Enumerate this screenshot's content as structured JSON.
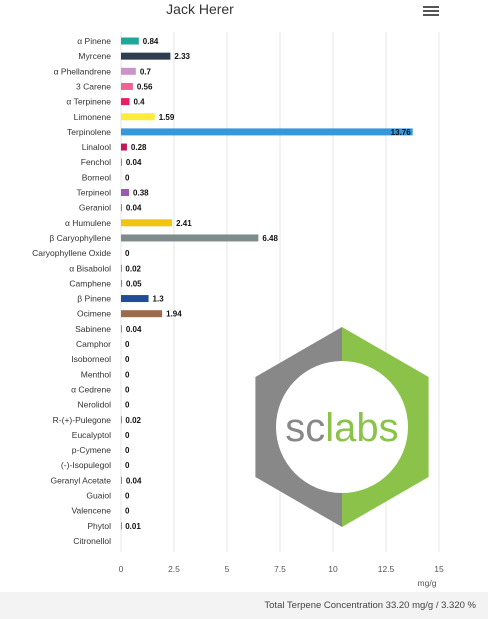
{
  "total_text": "Total Terpene Concentration 33.20 mg/g / 3.320 %",
  "logo_text": "sclabs",
  "colors": {
    "grid": "#e6e6e6",
    "logo_gray": "#888888",
    "logo_green": "#8bc34a"
  },
  "chart_data": {
    "type": "bar",
    "orientation": "horizontal",
    "title": "Jack Herer",
    "xlabel": "mg/g",
    "ylabel": "",
    "xlim": [
      0,
      15
    ],
    "xticks": [
      0,
      2.5,
      5,
      7.5,
      10,
      12.5,
      15
    ],
    "xtick_labels": [
      "0",
      "2.5",
      "5",
      "7.5",
      "10",
      "12.5",
      "15"
    ],
    "grid": true,
    "categories": [
      "α Pinene",
      "Myrcene",
      "α Phellandrene",
      "3 Carene",
      "α Terpinene",
      "Limonene",
      "Terpinolene",
      "Linalool",
      "Fenchol",
      "Borneol",
      "Terpineol",
      "Geraniol",
      "α Humulene",
      "β Caryophyllene",
      "Caryophyllene Oxide",
      "α Bisabolol",
      "Camphene",
      "β Pinene",
      "Ocimene",
      "Sabinene",
      "Camphor",
      "Isoborneol",
      "Menthol",
      "α Cedrene",
      "Nerolidol",
      "R-(+)-Pulegone",
      "Eucalyptol",
      "p-Cymene",
      "(-)-Isopulegol",
      "Geranyl Acetate",
      "Guaiol",
      "Valencene",
      "Phytol",
      "Citronellol"
    ],
    "values": [
      0.84,
      2.33,
      0.7,
      0.56,
      0.4,
      1.59,
      13.76,
      0.28,
      0.04,
      0,
      0.38,
      0.04,
      2.41,
      6.48,
      0,
      0.02,
      0.05,
      1.3,
      1.94,
      0.04,
      0,
      0,
      0,
      0,
      0,
      0.02,
      0,
      0,
      0,
      0.04,
      0,
      0,
      0.01,
      null
    ],
    "value_labels": [
      "0.84",
      "2.33",
      "0.7",
      "0.56",
      "0.4",
      "1.59",
      "13.76",
      "0.28",
      "0.04",
      "0",
      "0.38",
      "0.04",
      "2.41",
      "6.48",
      "0",
      "0.02",
      "0.05",
      "1.3",
      "1.94",
      "0.04",
      "0",
      "0",
      "0",
      "0",
      "0",
      "0.02",
      "0",
      "0",
      "0",
      "0.04",
      "0",
      "0",
      "0.01",
      ""
    ],
    "bar_colors": [
      "#1fa89a",
      "#2c3e50",
      "#c994c7",
      "#f06292",
      "#e91e63",
      "#ffeb3b",
      "#3498db",
      "#c2185b",
      "#888888",
      "#888888",
      "#9b59b6",
      "#888888",
      "#f1c40f",
      "#7f8c8d",
      "#888888",
      "#888888",
      "#888888",
      "#1f4e96",
      "#9c6b4e",
      "#888888",
      "#888888",
      "#888888",
      "#888888",
      "#888888",
      "#888888",
      "#888888",
      "#888888",
      "#888888",
      "#888888",
      "#888888",
      "#888888",
      "#888888",
      "#888888",
      "#888888"
    ]
  }
}
